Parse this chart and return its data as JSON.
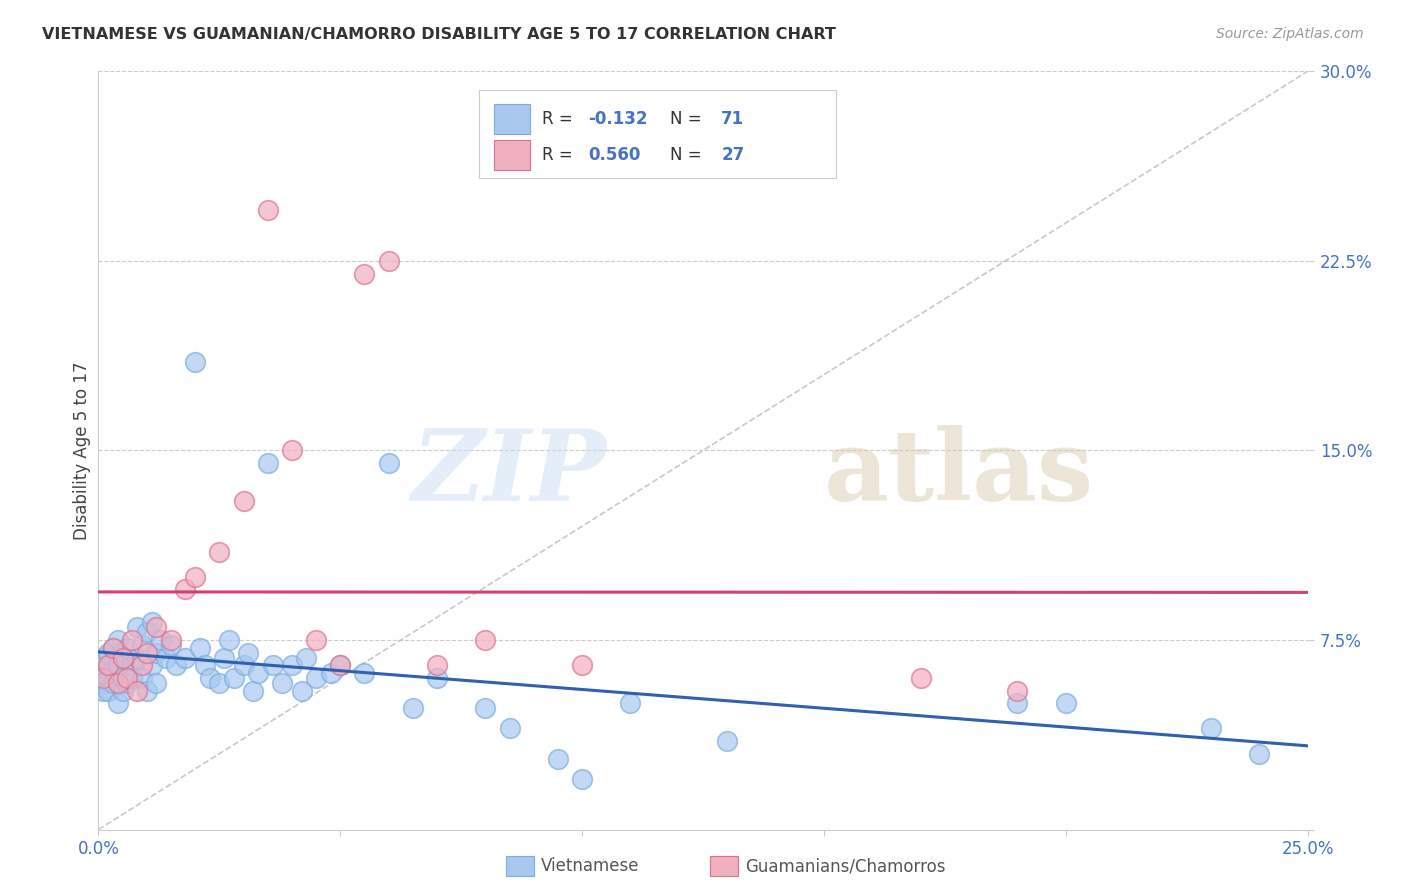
{
  "title": "VIETNAMESE VS GUAMANIAN/CHAMORRO DISABILITY AGE 5 TO 17 CORRELATION CHART",
  "source": "Source: ZipAtlas.com",
  "ylabel": "Disability Age 5 to 17",
  "x_min": 0.0,
  "x_max": 0.25,
  "y_min": 0.0,
  "y_max": 0.3,
  "viet_color": "#a8c8f0",
  "viet_edge": "#7aaede",
  "guam_color": "#f0b0c0",
  "guam_edge": "#dd7090",
  "viet_line_color": "#3060b0",
  "guam_line_color": "#d04070",
  "diag_color": "#bbbbbb",
  "grid_color": "#cccccc",
  "bg_color": "#ffffff",
  "title_color": "#333333",
  "source_color": "#999999",
  "axis_label_color": "#4472c4",
  "tick_label_color": "#4472c4",
  "viet_R": -0.132,
  "guam_R": 0.56,
  "viet_N": 71,
  "guam_N": 27,
  "viet_x": [
    0.001,
    0.001,
    0.001,
    0.001,
    0.001,
    0.002,
    0.002,
    0.002,
    0.003,
    0.003,
    0.003,
    0.004,
    0.004,
    0.004,
    0.005,
    0.005,
    0.005,
    0.006,
    0.006,
    0.007,
    0.007,
    0.008,
    0.008,
    0.009,
    0.009,
    0.01,
    0.01,
    0.011,
    0.011,
    0.012,
    0.012,
    0.013,
    0.014,
    0.015,
    0.016,
    0.018,
    0.02,
    0.021,
    0.022,
    0.023,
    0.025,
    0.026,
    0.027,
    0.028,
    0.03,
    0.031,
    0.032,
    0.033,
    0.035,
    0.036,
    0.038,
    0.04,
    0.042,
    0.043,
    0.045,
    0.048,
    0.05,
    0.055,
    0.06,
    0.065,
    0.07,
    0.08,
    0.085,
    0.095,
    0.1,
    0.11,
    0.13,
    0.19,
    0.2,
    0.23,
    0.24
  ],
  "viet_y": [
    0.062,
    0.065,
    0.058,
    0.055,
    0.068,
    0.06,
    0.07,
    0.055,
    0.072,
    0.063,
    0.058,
    0.065,
    0.05,
    0.075,
    0.068,
    0.06,
    0.055,
    0.072,
    0.058,
    0.065,
    0.06,
    0.08,
    0.068,
    0.073,
    0.06,
    0.078,
    0.055,
    0.082,
    0.065,
    0.07,
    0.058,
    0.075,
    0.068,
    0.073,
    0.065,
    0.068,
    0.185,
    0.072,
    0.065,
    0.06,
    0.058,
    0.068,
    0.075,
    0.06,
    0.065,
    0.07,
    0.055,
    0.062,
    0.145,
    0.065,
    0.058,
    0.065,
    0.055,
    0.068,
    0.06,
    0.062,
    0.065,
    0.062,
    0.145,
    0.048,
    0.06,
    0.048,
    0.04,
    0.028,
    0.02,
    0.05,
    0.035,
    0.05,
    0.05,
    0.04,
    0.03
  ],
  "guam_x": [
    0.001,
    0.002,
    0.003,
    0.004,
    0.005,
    0.006,
    0.007,
    0.008,
    0.009,
    0.01,
    0.012,
    0.015,
    0.018,
    0.02,
    0.025,
    0.03,
    0.035,
    0.04,
    0.045,
    0.05,
    0.055,
    0.06,
    0.07,
    0.08,
    0.1,
    0.17,
    0.19
  ],
  "guam_y": [
    0.06,
    0.065,
    0.072,
    0.058,
    0.068,
    0.06,
    0.075,
    0.055,
    0.065,
    0.07,
    0.08,
    0.075,
    0.095,
    0.1,
    0.11,
    0.13,
    0.245,
    0.15,
    0.075,
    0.065,
    0.22,
    0.225,
    0.065,
    0.075,
    0.065,
    0.06,
    0.055
  ]
}
